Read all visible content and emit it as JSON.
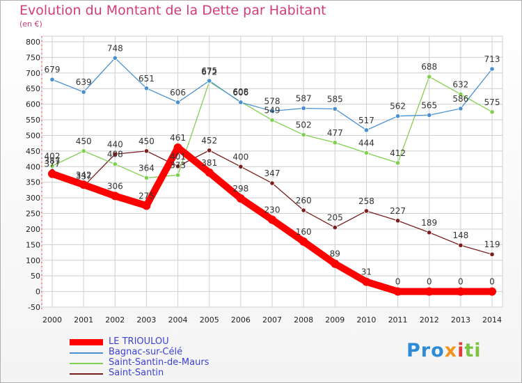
{
  "title": "Evolution du Montant de la Dette par Habitant",
  "subtitle": "(en €)",
  "logo": "Proxiti",
  "chart_data": {
    "type": "line",
    "title": "Evolution du Montant de la Dette par Habitant",
    "ylabel": "(en €)",
    "xlabel": "",
    "x": [
      2000,
      2001,
      2002,
      2003,
      2004,
      2005,
      2006,
      2007,
      2008,
      2009,
      2010,
      2011,
      2012,
      2013,
      2014
    ],
    "ylim": [
      -50,
      800
    ],
    "yticks": [
      -50,
      0,
      50,
      100,
      150,
      200,
      250,
      300,
      350,
      400,
      450,
      500,
      550,
      600,
      650,
      700,
      750,
      800
    ],
    "grid": true,
    "legend_position": "bottom-left",
    "series": [
      {
        "name": "LE TRIOULOU",
        "color": "#ff0000",
        "values": [
          377,
          342,
          306,
          275,
          461,
          381,
          298,
          230,
          160,
          89,
          31,
          0,
          0,
          0,
          0
        ]
      },
      {
        "name": "Bagnac-sur-Célé",
        "color": "#4a90d0",
        "values": [
          679,
          639,
          748,
          651,
          606,
          675,
          606,
          578,
          587,
          585,
          517,
          562,
          565,
          586,
          713
        ]
      },
      {
        "name": "Saint-Santin-de-Maurs",
        "color": "#80d050",
        "values": [
          402,
          450,
          408,
          364,
          373,
          672,
          608,
          549,
          502,
          477,
          444,
          412,
          688,
          632,
          575
        ]
      },
      {
        "name": "Saint-Santin",
        "color": "#7a1e1e",
        "values": [
          387,
          337,
          440,
          450,
          401,
          452,
          400,
          347,
          260,
          205,
          258,
          227,
          189,
          148,
          119
        ]
      }
    ]
  }
}
